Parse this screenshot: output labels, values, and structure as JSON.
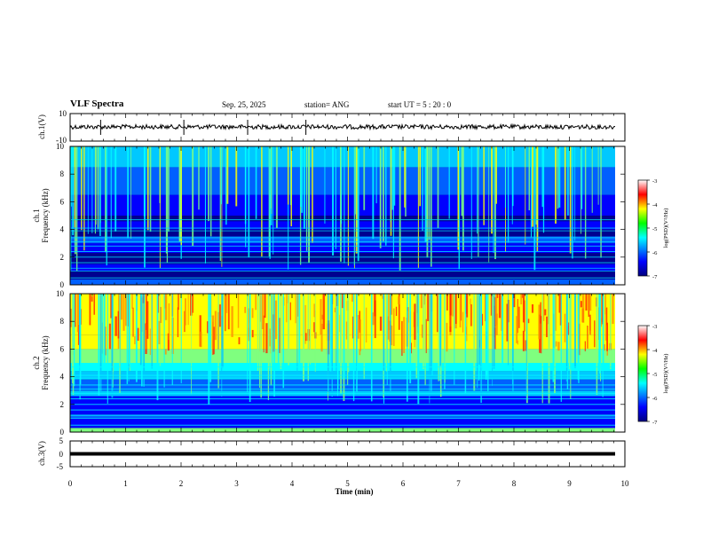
{
  "header": {
    "title": "VLF Spectra",
    "date": "Sep. 25, 2025",
    "station": "station= ANG",
    "start": "start  UT  =   5  : 20 : 0"
  },
  "chart_data": [
    {
      "type": "line",
      "name": "ch1-waveform",
      "ylabel": "ch.1(V)",
      "ylim": [
        -10,
        10
      ],
      "yticks": [
        "10",
        "-10"
      ],
      "xlim": [
        0,
        10
      ],
      "description_values": {
        "baseline": 0,
        "typical_amplitude": 1.5,
        "spikes_min": [
          0.55,
          2.05,
          3.2,
          4.25
        ]
      }
    },
    {
      "type": "heatmap",
      "name": "ch1-spectrogram",
      "ylabel_line1": "ch.1",
      "ylabel_line2": "Frequency (kHz)",
      "ylim": [
        0,
        10
      ],
      "yticks": [
        "0",
        "2",
        "4",
        "6",
        "8",
        "10"
      ],
      "xlim": [
        0,
        9.8
      ],
      "colorbar": {
        "label": "log(PSD)(V²/Hz)",
        "range": [
          -7,
          -3
        ],
        "ticks": [
          "-3",
          "-4",
          "-5",
          "-6",
          "-7"
        ]
      }
    },
    {
      "type": "heatmap",
      "name": "ch2-spectrogram",
      "ylabel_line1": "ch.2",
      "ylabel_line2": "Frequency (kHz)",
      "ylim": [
        0,
        10
      ],
      "yticks": [
        "0",
        "2",
        "4",
        "6",
        "8",
        "10"
      ],
      "xlim": [
        0,
        9.8
      ],
      "colorbar": {
        "label": "log(PSD)(V²/Hz)",
        "range": [
          -7,
          -3
        ],
        "ticks": [
          "-3",
          "-4",
          "-5",
          "-6",
          "-7"
        ]
      }
    },
    {
      "type": "line",
      "name": "ch3-waveform",
      "ylabel": "ch.3(V)",
      "ylim": [
        -5,
        5
      ],
      "yticks": [
        "5",
        "0",
        "-5"
      ],
      "xlim": [
        0,
        10
      ],
      "description_values": {
        "constant_level": -1.5
      }
    }
  ],
  "xaxis": {
    "label": "Time  (min)",
    "ticks": [
      "0",
      "1",
      "2",
      "3",
      "4",
      "5",
      "6",
      "7",
      "8",
      "9",
      "10"
    ]
  },
  "colors": {
    "background": "#ffffff",
    "axis": "#000000",
    "jet_low": "#00007f",
    "jet_high": "#7f0000"
  }
}
